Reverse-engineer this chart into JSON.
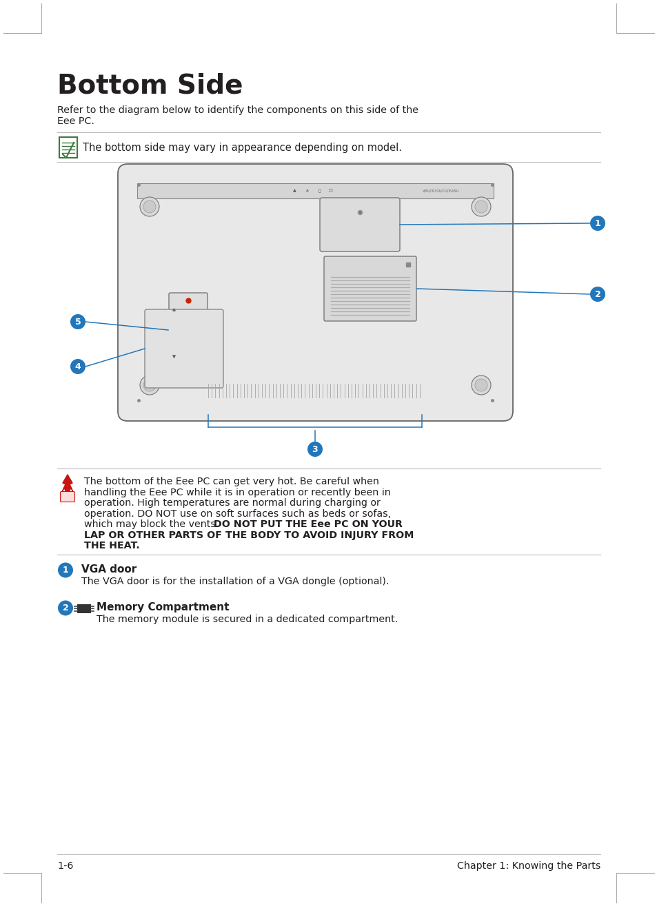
{
  "title": "Bottom Side",
  "subtitle_line1": "Refer to the diagram below to identify the components on this side of the",
  "subtitle_line2": "Eee PC.",
  "note_text": "The bottom side may vary in appearance depending on model.",
  "warn_line1": "The bottom of the Eee PC can get very hot. Be careful when",
  "warn_line2": "handling the Eee PC while it is in operation or recently been in",
  "warn_line3": "operation. High temperatures are normal during charging or",
  "warn_line4": "operation. DO NOT use on soft surfaces such as beds or sofas,",
  "warn_line5_normal": "which may block the vents. ",
  "warn_line5_bold": "DO NOT PUT THE Eee PC ON YOUR",
  "warn_line6": "LAP OR OTHER PARTS OF THE BODY TO AVOID INJURY FROM",
  "warn_line7": "THE HEAT.",
  "item1_title": "VGA door",
  "item1_desc": "The VGA door is for the installation of a VGA dongle (optional).",
  "item2_title": "Memory Compartment",
  "item2_desc": "The memory module is secured in a dedicated compartment.",
  "footer_left": "1-6",
  "footer_right": "Chapter 1: Knowing the Parts",
  "bg_color": "#ffffff",
  "text_color": "#231f20",
  "blue_color": "#2277bb",
  "note_green": "#3a7a3a",
  "line_color": "#bbbbbb",
  "laptop_body": "#e8e8e8",
  "laptop_edge": "#666666",
  "laptop_dark": "#cccccc"
}
